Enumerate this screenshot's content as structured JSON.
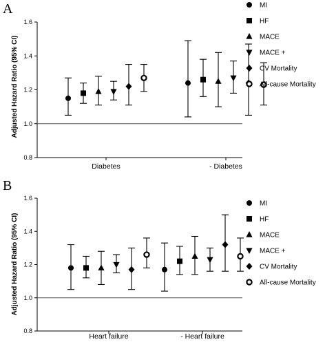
{
  "chart_data": [
    {
      "type": "scatter",
      "panel_label": "A",
      "ylabel": "Adjusted Hazard Ratio (95% CI)",
      "ylim": [
        0.8,
        1.6
      ],
      "yticks": [
        0.8,
        1.0,
        1.2,
        1.4,
        1.6
      ],
      "ytick_labels": [
        "0.8",
        "1.0",
        "1.2",
        "1.4",
        "1.6"
      ],
      "reference_line": 1.0,
      "categories": [
        "Diabetes",
        "- Diabetes"
      ],
      "legend_position": "right",
      "series": [
        {
          "name": "MI",
          "marker": "circle",
          "values": [
            {
              "est": 1.15,
              "lo": 1.05,
              "hi": 1.27
            },
            {
              "est": 1.24,
              "lo": 1.04,
              "hi": 1.49
            }
          ]
        },
        {
          "name": "HF",
          "marker": "square",
          "values": [
            {
              "est": 1.18,
              "lo": 1.12,
              "hi": 1.24
            },
            {
              "est": 1.26,
              "lo": 1.16,
              "hi": 1.38
            }
          ]
        },
        {
          "name": "MACE",
          "marker": "triangle-up",
          "values": [
            {
              "est": 1.19,
              "lo": 1.11,
              "hi": 1.28
            },
            {
              "est": 1.25,
              "lo": 1.1,
              "hi": 1.42
            }
          ]
        },
        {
          "name": "MACE +",
          "marker": "triangle-down",
          "values": [
            {
              "est": 1.19,
              "lo": 1.14,
              "hi": 1.25
            },
            {
              "est": 1.27,
              "lo": 1.18,
              "hi": 1.37
            }
          ]
        },
        {
          "name": "CV Mortality",
          "marker": "diamond",
          "values": [
            {
              "est": 1.22,
              "lo": 1.11,
              "hi": 1.35
            },
            {
              "est": 1.24,
              "lo": 1.05,
              "hi": 1.47
            }
          ]
        },
        {
          "name": "All-cause Mortality",
          "marker": "ring",
          "values": [
            {
              "est": 1.27,
              "lo": 1.19,
              "hi": 1.35
            },
            {
              "est": 1.23,
              "lo": 1.11,
              "hi": 1.36
            }
          ]
        }
      ]
    },
    {
      "type": "scatter",
      "panel_label": "B",
      "ylabel": "Adjusted Hazard Ratio (95% CI)",
      "ylim": [
        0.8,
        1.6
      ],
      "yticks": [
        0.8,
        1.0,
        1.2,
        1.4,
        1.6
      ],
      "ytick_labels": [
        "0.8",
        "1.0",
        "1.2",
        "1.4",
        "1.6"
      ],
      "reference_line": 1.0,
      "categories": [
        "Heart failure",
        "- Heart failure"
      ],
      "legend_position": "right",
      "series": [
        {
          "name": "MI",
          "marker": "circle",
          "values": [
            {
              "est": 1.18,
              "lo": 1.05,
              "hi": 1.32
            },
            {
              "est": 1.17,
              "lo": 1.04,
              "hi": 1.33
            }
          ]
        },
        {
          "name": "HF",
          "marker": "square",
          "values": [
            {
              "est": 1.18,
              "lo": 1.12,
              "hi": 1.25
            },
            {
              "est": 1.22,
              "lo": 1.14,
              "hi": 1.31
            }
          ]
        },
        {
          "name": "MACE",
          "marker": "triangle-up",
          "values": [
            {
              "est": 1.18,
              "lo": 1.08,
              "hi": 1.28
            },
            {
              "est": 1.25,
              "lo": 1.14,
              "hi": 1.37
            }
          ]
        },
        {
          "name": "MACE +",
          "marker": "triangle-down",
          "values": [
            {
              "est": 1.2,
              "lo": 1.15,
              "hi": 1.26
            },
            {
              "est": 1.23,
              "lo": 1.16,
              "hi": 1.3
            }
          ]
        },
        {
          "name": "CV Mortality",
          "marker": "diamond",
          "values": [
            {
              "est": 1.17,
              "lo": 1.05,
              "hi": 1.3
            },
            {
              "est": 1.32,
              "lo": 1.16,
              "hi": 1.5
            }
          ]
        },
        {
          "name": "All-cause Mortality",
          "marker": "ring",
          "values": [
            {
              "est": 1.26,
              "lo": 1.18,
              "hi": 1.36
            },
            {
              "est": 1.25,
              "lo": 1.16,
              "hi": 1.36
            }
          ]
        }
      ]
    }
  ]
}
